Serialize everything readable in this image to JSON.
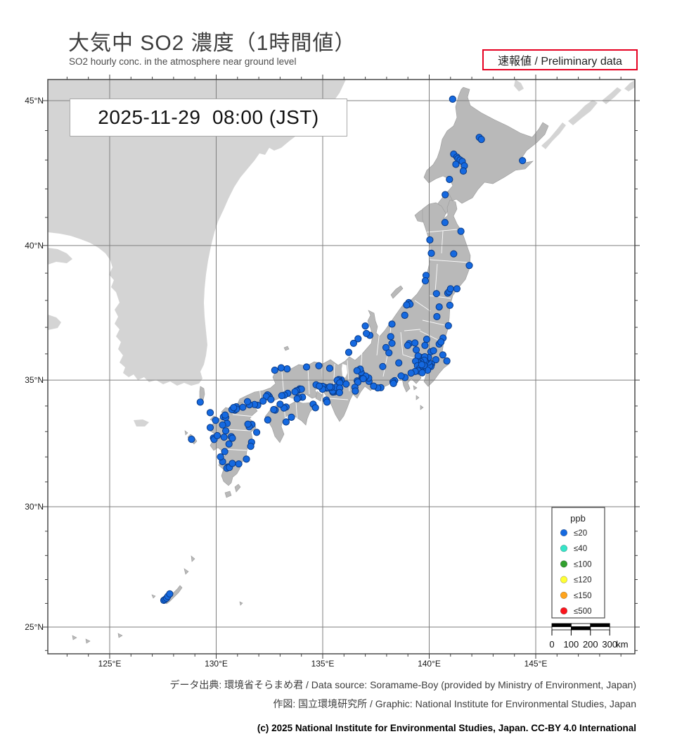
{
  "header": {
    "title": "大気中 SO2 濃度（1時間値）",
    "subtitle": "SO2 hourly conc. in the atmosphere near ground level",
    "preliminary_label": "速報値 / Preliminary data"
  },
  "map": {
    "timestamp": "2025-11-29  08:00 (JST)",
    "axes": {
      "lat_major": [
        45,
        40,
        35,
        30,
        25
      ],
      "lat_labels": [
        "45°N",
        "40°N",
        "35°N",
        "30°N",
        "25°N"
      ],
      "lon_major": [
        125,
        130,
        135,
        140,
        145
      ],
      "lon_labels": [
        "125°E",
        "130°E",
        "135°E",
        "140°E",
        "145°E"
      ],
      "lon_minor_range": [
        123,
        149
      ],
      "lat_minor_range": [
        24,
        45
      ]
    },
    "legend": {
      "title": "ppb",
      "items": [
        {
          "label": "≤20",
          "color": "#1569e0"
        },
        {
          "label": "≤40",
          "color": "#35e5c8"
        },
        {
          "label": "≤100",
          "color": "#31a02e"
        },
        {
          "label": "≤120",
          "color": "#ffff33"
        },
        {
          "label": "≤150",
          "color": "#ffa41c"
        },
        {
          "label": "≤500",
          "color": "#fb141c"
        }
      ]
    },
    "scalebar": {
      "tick_labels": [
        "0",
        "100",
        "200",
        "300"
      ],
      "unit": "km"
    }
  },
  "chart_data": {
    "type": "scatter-map",
    "projection": "mercator",
    "lon_range": [
      122.1,
      149.7
    ],
    "lat_range": [
      23.9,
      45.7
    ],
    "series": [
      {
        "name": "SO2 ≤20 ppb stations",
        "color": "#1569e0",
        "points": [
          [
            141.1,
            45.05
          ],
          [
            142.35,
            43.77
          ],
          [
            142.45,
            43.7
          ],
          [
            144.38,
            42.98
          ],
          [
            141.15,
            43.2
          ],
          [
            141.3,
            43.1
          ],
          [
            141.35,
            43.05
          ],
          [
            141.45,
            43.0
          ],
          [
            141.55,
            42.95
          ],
          [
            141.25,
            42.85
          ],
          [
            141.65,
            42.8
          ],
          [
            141.6,
            42.62
          ],
          [
            140.95,
            42.33
          ],
          [
            140.75,
            41.8
          ],
          [
            140.74,
            40.82
          ],
          [
            141.49,
            40.51
          ],
          [
            141.15,
            39.7
          ],
          [
            141.88,
            39.28
          ],
          [
            140.1,
            39.72
          ],
          [
            140.03,
            40.2
          ],
          [
            139.85,
            38.92
          ],
          [
            139.82,
            38.72
          ],
          [
            140.34,
            38.25
          ],
          [
            140.87,
            38.27
          ],
          [
            140.93,
            38.32
          ],
          [
            141.0,
            38.43
          ],
          [
            141.3,
            38.43
          ],
          [
            140.97,
            37.82
          ],
          [
            140.47,
            37.76
          ],
          [
            140.36,
            37.4
          ],
          [
            140.9,
            37.06
          ],
          [
            139.04,
            37.92
          ],
          [
            139.1,
            37.86
          ],
          [
            138.94,
            37.83
          ],
          [
            138.85,
            37.45
          ],
          [
            138.25,
            37.12
          ],
          [
            137.21,
            36.7
          ],
          [
            137.05,
            36.77
          ],
          [
            137.0,
            37.05
          ],
          [
            136.66,
            36.57
          ],
          [
            136.45,
            36.4
          ],
          [
            136.22,
            36.06
          ],
          [
            139.88,
            36.55
          ],
          [
            139.8,
            36.32
          ],
          [
            139.06,
            36.39
          ],
          [
            138.99,
            36.32
          ],
          [
            139.33,
            36.41
          ],
          [
            139.39,
            36.15
          ],
          [
            140.47,
            36.37
          ],
          [
            140.65,
            36.6
          ],
          [
            140.55,
            36.45
          ],
          [
            140.08,
            36.08
          ],
          [
            140.2,
            36.12
          ],
          [
            140.64,
            35.96
          ],
          [
            140.83,
            35.73
          ],
          [
            140.31,
            35.78
          ],
          [
            140.11,
            35.61
          ],
          [
            140.08,
            35.52
          ],
          [
            140.02,
            35.55
          ],
          [
            139.92,
            35.38
          ],
          [
            139.98,
            35.69
          ],
          [
            139.9,
            35.79
          ],
          [
            139.97,
            35.86
          ],
          [
            139.64,
            35.86
          ],
          [
            139.48,
            35.92
          ],
          [
            139.72,
            35.8
          ],
          [
            139.79,
            35.89
          ],
          [
            139.69,
            35.69
          ],
          [
            139.75,
            35.67
          ],
          [
            139.82,
            35.72
          ],
          [
            139.77,
            35.76
          ],
          [
            139.6,
            35.7
          ],
          [
            139.54,
            35.65
          ],
          [
            139.45,
            35.7
          ],
          [
            139.36,
            35.72
          ],
          [
            139.45,
            35.55
          ],
          [
            139.63,
            35.46
          ],
          [
            139.62,
            35.39
          ],
          [
            139.68,
            35.41
          ],
          [
            139.55,
            35.44
          ],
          [
            139.5,
            35.35
          ],
          [
            139.7,
            35.53
          ],
          [
            139.76,
            35.56
          ],
          [
            139.65,
            35.59
          ],
          [
            139.67,
            35.28
          ],
          [
            139.34,
            35.33
          ],
          [
            139.15,
            35.27
          ],
          [
            138.57,
            35.66
          ],
          [
            138.86,
            35.1
          ],
          [
            138.68,
            35.16
          ],
          [
            137.97,
            36.24
          ],
          [
            138.19,
            36.65
          ],
          [
            138.25,
            36.4
          ],
          [
            138.11,
            36.04
          ],
          [
            137.82,
            35.52
          ],
          [
            138.38,
            34.98
          ],
          [
            138.3,
            34.93
          ],
          [
            138.32,
            34.87
          ],
          [
            137.73,
            34.71
          ],
          [
            137.58,
            34.7
          ],
          [
            137.39,
            34.77
          ],
          [
            137.17,
            34.95
          ],
          [
            137.16,
            35.08
          ],
          [
            136.9,
            35.18
          ],
          [
            136.95,
            35.15
          ],
          [
            136.85,
            35.12
          ],
          [
            136.88,
            35.08
          ],
          [
            136.97,
            35.1
          ],
          [
            137.02,
            35.15
          ],
          [
            136.9,
            35.05
          ],
          [
            136.8,
            35.3
          ],
          [
            136.76,
            35.42
          ],
          [
            136.61,
            35.36
          ],
          [
            136.62,
            34.97
          ],
          [
            136.65,
            34.92
          ],
          [
            136.51,
            34.72
          ],
          [
            136.53,
            34.58
          ],
          [
            136.1,
            34.85
          ],
          [
            135.87,
            35.0
          ],
          [
            135.75,
            35.02
          ],
          [
            135.78,
            34.95
          ],
          [
            135.68,
            34.99
          ],
          [
            135.8,
            34.89
          ],
          [
            135.5,
            34.69
          ],
          [
            135.52,
            34.64
          ],
          [
            135.46,
            34.66
          ],
          [
            135.43,
            34.62
          ],
          [
            135.55,
            34.6
          ],
          [
            135.6,
            34.66
          ],
          [
            135.57,
            34.55
          ],
          [
            135.48,
            34.54
          ],
          [
            135.47,
            34.58
          ],
          [
            135.62,
            34.72
          ],
          [
            135.18,
            34.69
          ],
          [
            135.1,
            34.72
          ],
          [
            135.25,
            34.71
          ],
          [
            135.0,
            34.76
          ],
          [
            135.41,
            34.73
          ],
          [
            135.34,
            34.74
          ],
          [
            134.99,
            34.65
          ],
          [
            134.69,
            34.82
          ],
          [
            134.84,
            34.77
          ],
          [
            135.8,
            34.69
          ],
          [
            135.79,
            34.52
          ],
          [
            135.17,
            34.23
          ],
          [
            135.2,
            34.15
          ],
          [
            135.33,
            35.45
          ],
          [
            134.82,
            35.55
          ],
          [
            134.24,
            35.5
          ],
          [
            133.33,
            35.43
          ],
          [
            133.05,
            35.47
          ],
          [
            132.75,
            35.38
          ],
          [
            133.92,
            34.66
          ],
          [
            133.85,
            34.61
          ],
          [
            134.0,
            34.65
          ],
          [
            133.77,
            34.59
          ],
          [
            133.7,
            34.55
          ],
          [
            133.36,
            34.49
          ],
          [
            133.2,
            34.42
          ],
          [
            133.08,
            34.4
          ],
          [
            132.46,
            34.4
          ],
          [
            132.5,
            34.35
          ],
          [
            132.41,
            34.43
          ],
          [
            132.35,
            34.37
          ],
          [
            132.57,
            34.25
          ],
          [
            132.2,
            34.19
          ],
          [
            131.95,
            34.03
          ],
          [
            131.8,
            34.06
          ],
          [
            131.56,
            34.05
          ],
          [
            131.47,
            34.17
          ],
          [
            131.25,
            33.95
          ],
          [
            130.94,
            33.97
          ],
          [
            134.05,
            34.34
          ],
          [
            133.86,
            34.32
          ],
          [
            133.8,
            34.28
          ],
          [
            134.55,
            34.07
          ],
          [
            134.66,
            33.93
          ],
          [
            133.28,
            33.96
          ],
          [
            133.18,
            33.92
          ],
          [
            133.0,
            34.07
          ],
          [
            132.77,
            33.84
          ],
          [
            132.7,
            33.86
          ],
          [
            132.42,
            33.46
          ],
          [
            133.53,
            33.56
          ],
          [
            133.28,
            33.38
          ],
          [
            130.87,
            33.89
          ],
          [
            130.8,
            33.9
          ],
          [
            130.88,
            33.84
          ],
          [
            130.95,
            33.88
          ],
          [
            130.74,
            33.86
          ],
          [
            130.82,
            33.94
          ],
          [
            130.4,
            33.6
          ],
          [
            130.34,
            33.58
          ],
          [
            130.45,
            33.55
          ],
          [
            130.42,
            33.65
          ],
          [
            130.51,
            33.32
          ],
          [
            130.45,
            33.03
          ],
          [
            130.3,
            33.26
          ],
          [
            129.97,
            33.44
          ],
          [
            129.72,
            33.16
          ],
          [
            129.87,
            32.75
          ],
          [
            129.9,
            32.69
          ],
          [
            130.05,
            32.84
          ],
          [
            130.37,
            32.78
          ],
          [
            130.71,
            32.8
          ],
          [
            130.76,
            32.74
          ],
          [
            130.6,
            32.51
          ],
          [
            130.4,
            32.21
          ],
          [
            131.6,
            33.24
          ],
          [
            131.68,
            33.28
          ],
          [
            131.55,
            33.19
          ],
          [
            131.49,
            33.29
          ],
          [
            131.9,
            32.97
          ],
          [
            131.66,
            32.58
          ],
          [
            131.62,
            32.42
          ],
          [
            131.42,
            31.91
          ],
          [
            131.06,
            31.72
          ],
          [
            130.55,
            31.6
          ],
          [
            130.5,
            31.55
          ],
          [
            130.62,
            31.58
          ],
          [
            130.76,
            31.74
          ],
          [
            130.3,
            31.81
          ],
          [
            130.2,
            32.0
          ],
          [
            129.25,
            34.15
          ],
          [
            129.72,
            33.74
          ],
          [
            128.84,
            32.7
          ],
          [
            127.54,
            26.13
          ],
          [
            127.6,
            26.17
          ],
          [
            127.67,
            26.22
          ],
          [
            127.73,
            26.3
          ],
          [
            127.82,
            26.4
          ]
        ]
      }
    ]
  },
  "footer": {
    "source_line": "データ出典: 環境省そらまめ君 / Data source: Soramame-Boy (provided by Ministry of Environment, Japan)",
    "graphic_line": "作図: 国立環境研究所 / Graphic: National Institute for Environmental Studies, Japan",
    "copyright_line": "(c) 2025 National Institute for Environmental Studies, Japan. CC-BY 4.0 International"
  }
}
